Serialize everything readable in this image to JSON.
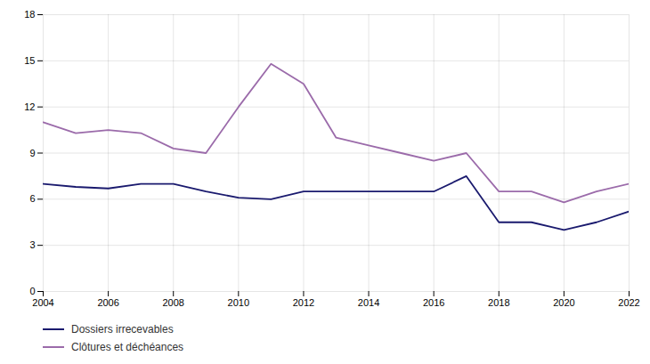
{
  "chart_data": {
    "type": "line",
    "x": [
      2004,
      2005,
      2006,
      2007,
      2008,
      2009,
      2010,
      2011,
      2012,
      2013,
      2014,
      2015,
      2016,
      2017,
      2018,
      2019,
      2020,
      2021,
      2022
    ],
    "series": [
      {
        "name": "Dossiers irrecevables",
        "color": "#1a1a6e",
        "values": [
          7.0,
          6.8,
          6.7,
          7.0,
          7.0,
          6.5,
          6.1,
          6.0,
          6.5,
          6.5,
          6.5,
          6.5,
          6.5,
          7.5,
          4.5,
          4.5,
          4.0,
          4.5,
          5.2
        ]
      },
      {
        "name": "Clôtures et déchéances",
        "color": "#9b6baa",
        "values": [
          11.0,
          10.3,
          10.5,
          10.3,
          9.3,
          9.0,
          12.0,
          14.8,
          13.5,
          10.0,
          9.5,
          9.0,
          8.5,
          9.0,
          6.5,
          6.5,
          5.8,
          6.5,
          7.0
        ]
      }
    ],
    "xlim": [
      2004,
      2022
    ],
    "xticks": [
      2004,
      2006,
      2008,
      2010,
      2012,
      2014,
      2016,
      2018,
      2020,
      2022
    ],
    "ylim": [
      0,
      18
    ],
    "yticks": [
      0,
      3,
      6,
      9,
      12,
      15,
      18
    ],
    "grid": true,
    "legend": "bottom"
  }
}
